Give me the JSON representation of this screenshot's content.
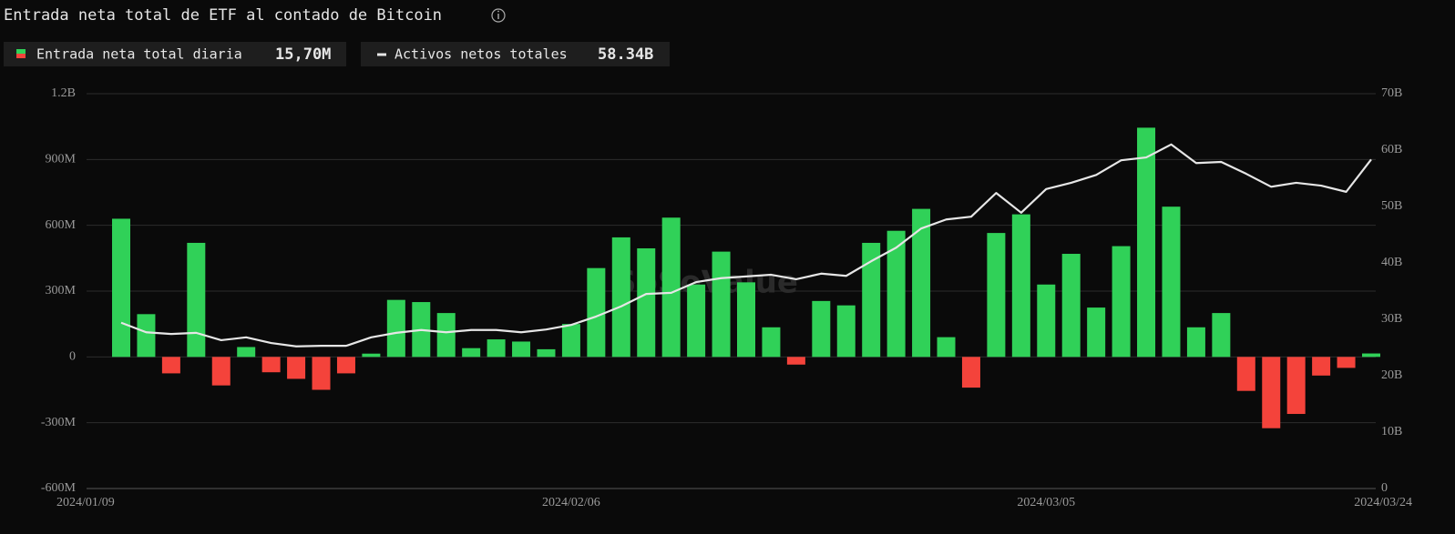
{
  "chart_data": {
    "type": "bar",
    "title": "Entrada neta total de ETF al contado de Bitcoin",
    "watermark": "SoSoValue",
    "categories": [
      "2024/01/09",
      null,
      null,
      null,
      null,
      null,
      null,
      null,
      null,
      null,
      null,
      null,
      null,
      null,
      null,
      null,
      null,
      null,
      "2024/02/06",
      null,
      null,
      null,
      null,
      null,
      null,
      null,
      null,
      null,
      null,
      null,
      null,
      null,
      null,
      null,
      null,
      null,
      null,
      "2024/03/05",
      null,
      null,
      null,
      null,
      null,
      null,
      null,
      null,
      null,
      null,
      null,
      null,
      "2024/03/24"
    ],
    "series": [
      {
        "name": "Entrada neta total diaria",
        "latest_label": "15,70M",
        "type": "bar",
        "color": "#30d158",
        "negative_color": "#f4433b",
        "values": [
          630000000,
          195000000,
          -75000000,
          520000000,
          -130000000,
          45000000,
          -70000000,
          -100000000,
          -150000000,
          -75000000,
          15000000,
          260000000,
          250000000,
          200000000,
          40000000,
          80000000,
          70000000,
          35000000,
          150000000,
          405000000,
          545000000,
          495000000,
          635000000,
          330000000,
          480000000,
          340000000,
          135000000,
          -35000000,
          255000000,
          235000000,
          520000000,
          575000000,
          675000000,
          90000000,
          -140000000,
          565000000,
          650000000,
          330000000,
          470000000,
          225000000,
          505000000,
          1045000000,
          685000000,
          135000000,
          200000000,
          -155000000,
          -325000000,
          -260000000,
          -85000000,
          -50000000,
          15700000
        ]
      },
      {
        "name": "Activos netos totales",
        "latest_label": "58.34B",
        "type": "line",
        "axis": "y2",
        "color": "#e6e6e6",
        "values": [
          29400000000,
          27700000000,
          27400000000,
          27600000000,
          26300000000,
          26800000000,
          25800000000,
          25200000000,
          25300000000,
          25300000000,
          26800000000,
          27600000000,
          28100000000,
          27700000000,
          28100000000,
          28100000000,
          27700000000,
          28200000000,
          29000000000,
          30500000000,
          32300000000,
          34500000000,
          34700000000,
          36600000000,
          37300000000,
          37600000000,
          37900000000,
          37100000000,
          38100000000,
          37700000000,
          40300000000,
          42700000000,
          46100000000,
          47700000000,
          48200000000,
          52400000000,
          48900000000,
          53100000000,
          54200000000,
          55600000000,
          58200000000,
          58700000000,
          61000000000,
          57700000000,
          57900000000,
          55800000000,
          53500000000,
          54200000000,
          53700000000,
          52600000000,
          58340000000
        ]
      }
    ],
    "ylim": [
      -600000000,
      1200000000
    ],
    "yticks": [
      {
        "value": -600000000,
        "label": "-600M"
      },
      {
        "value": -300000000,
        "label": "-300M"
      },
      0,
      {
        "value": 300000000,
        "label": "300M"
      },
      {
        "value": 600000000,
        "label": "600M"
      },
      {
        "value": 900000000,
        "label": "900M"
      },
      {
        "value": 1200000000,
        "label": "1.2B"
      }
    ],
    "y2lim": [
      0,
      70000000000
    ],
    "y2ticks": [
      0,
      {
        "value": 10000000000,
        "label": "10B"
      },
      {
        "value": 20000000000,
        "label": "20B"
      },
      {
        "value": 30000000000,
        "label": "30B"
      },
      {
        "value": 40000000000,
        "label": "40B"
      },
      {
        "value": 50000000000,
        "label": "50B"
      },
      {
        "value": 60000000000,
        "label": "60B"
      },
      {
        "value": 70000000000,
        "label": "70B"
      }
    ],
    "grid": true
  }
}
